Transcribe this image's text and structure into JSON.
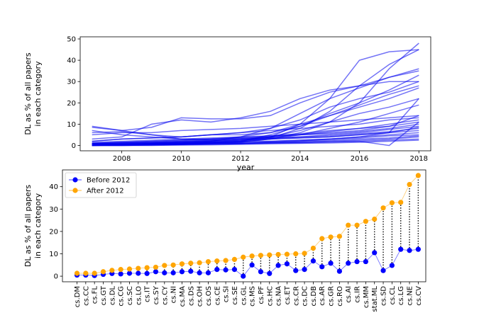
{
  "chart_data": [
    {
      "type": "line",
      "xlabel": "year",
      "ylabel_lines": [
        "DL as % of all papers",
        "in each category"
      ],
      "xlim": [
        2006.6,
        2018.4
      ],
      "ylim": [
        -2.5,
        51
      ],
      "xticks": [
        2008,
        2010,
        2012,
        2014,
        2016,
        2018
      ],
      "yticks": [
        0,
        10,
        20,
        30,
        40,
        50
      ],
      "line_color": "#0000ee",
      "x": [
        2007,
        2008,
        2009,
        2010,
        2011,
        2012,
        2013,
        2014,
        2015,
        2016,
        2017,
        2018
      ],
      "series": [
        {
          "values": [
            0.8,
            0.7,
            0.8,
            0.9,
            1.2,
            1.6,
            3,
            6,
            11,
            20,
            36,
            48
          ]
        },
        {
          "values": [
            0.9,
            1,
            1.2,
            1.3,
            1.5,
            1.8,
            3.5,
            8,
            16,
            28,
            38,
            45
          ]
        },
        {
          "values": [
            1,
            1.2,
            1.5,
            1.8,
            2,
            2.5,
            4,
            10,
            22,
            40,
            44,
            45
          ]
        },
        {
          "values": [
            0.5,
            0.8,
            1,
            1.5,
            2,
            4,
            8,
            15,
            22,
            27,
            32,
            36
          ]
        },
        {
          "values": [
            8.5,
            7,
            8.5,
            13,
            12.5,
            12.5,
            14,
            20,
            25,
            28,
            32,
            35
          ]
        },
        {
          "values": [
            0.3,
            0.5,
            0.8,
            1,
            1.5,
            2,
            5,
            9,
            15,
            20,
            26,
            33
          ]
        },
        {
          "values": [
            2,
            3,
            3.5,
            4,
            5,
            6,
            8,
            12,
            18,
            22,
            25,
            30
          ]
        },
        {
          "values": [
            1,
            1.5,
            2,
            2.5,
            3,
            4,
            6,
            10,
            14,
            19,
            24,
            28
          ]
        },
        {
          "values": [
            9,
            7,
            5,
            4,
            5,
            5,
            6,
            9,
            14,
            18,
            22,
            27
          ]
        },
        {
          "values": [
            0.5,
            0.8,
            1,
            1.2,
            1.5,
            2,
            4,
            7,
            11,
            15,
            18,
            22
          ]
        },
        {
          "values": [
            3,
            4,
            10,
            12,
            11,
            13,
            16,
            22,
            26,
            28,
            30,
            30
          ]
        },
        {
          "values": [
            0,
            0.3,
            0.5,
            0.7,
            1,
            1.5,
            3,
            5,
            8,
            11,
            15,
            19
          ]
        },
        {
          "values": [
            5,
            6,
            6,
            7,
            7.5,
            8,
            9,
            10,
            11,
            12,
            13,
            14
          ]
        },
        {
          "values": [
            2,
            3,
            3.5,
            4,
            5,
            6,
            7,
            8,
            9,
            10,
            12,
            13
          ]
        },
        {
          "values": [
            6,
            6.5,
            5,
            3,
            2.5,
            3,
            4,
            5,
            6.5,
            8,
            10,
            12
          ]
        },
        {
          "values": [
            1,
            1.5,
            2,
            2.5,
            3,
            3.5,
            4.5,
            5.5,
            7,
            8,
            9,
            11
          ]
        },
        {
          "values": [
            7,
            5,
            4,
            3,
            3,
            3.5,
            4,
            5,
            5.5,
            6.5,
            8,
            10
          ]
        },
        {
          "values": [
            0.5,
            1,
            1.5,
            2,
            2.5,
            3,
            3.5,
            4,
            5,
            6,
            7.5,
            9
          ]
        },
        {
          "values": [
            1,
            1.5,
            1.5,
            2,
            2.5,
            3,
            3.5,
            4,
            4.5,
            5.5,
            6.5,
            8
          ]
        },
        {
          "values": [
            0.5,
            0.5,
            1,
            1.5,
            2,
            2.5,
            3,
            3.5,
            4,
            5,
            6,
            7
          ]
        },
        {
          "values": [
            0.5,
            0.5,
            0.8,
            1,
            1.2,
            1.5,
            2,
            2.5,
            3,
            4,
            5,
            6
          ]
        },
        {
          "values": [
            0,
            0.2,
            0.5,
            1,
            1.5,
            2,
            2,
            2.5,
            3,
            3.5,
            4.5,
            5
          ]
        },
        {
          "values": [
            0,
            0.2,
            0.3,
            0.5,
            0.8,
            1,
            1.2,
            1.5,
            2,
            2.5,
            3,
            4
          ]
        },
        {
          "values": [
            0,
            0,
            0.2,
            0.3,
            0.5,
            0.8,
            1,
            1.2,
            1.5,
            2,
            2.5,
            3
          ]
        },
        {
          "values": [
            0.3,
            0.3,
            0.5,
            0.5,
            0.8,
            1,
            1.5,
            2,
            3,
            4,
            6,
            22
          ]
        },
        {
          "values": [
            1.5,
            2,
            2.5,
            3,
            3.5,
            4,
            4.5,
            5,
            6,
            7,
            9,
            14
          ]
        },
        {
          "values": [
            0,
            0,
            0,
            0.2,
            0.3,
            0.5,
            0.8,
            1,
            1.2,
            1.5,
            2,
            2.5
          ]
        },
        {
          "values": [
            0.5,
            0.5,
            0.5,
            0.8,
            1,
            1,
            1.5,
            2,
            2.5,
            3,
            3.5,
            4.5
          ]
        },
        {
          "values": [
            0,
            0.5,
            1,
            1.5,
            2,
            2.5,
            3,
            3.5,
            4,
            5,
            6,
            8.5
          ]
        },
        {
          "values": [
            0,
            0,
            0.2,
            0.5,
            1,
            1,
            1.5,
            1.5,
            2,
            2,
            0,
            11
          ]
        }
      ]
    },
    {
      "type": "scatter",
      "ylabel_lines": [
        "DL as % of all papers",
        "in each category"
      ],
      "ylim": [
        -2.5,
        47.5
      ],
      "yticks": [
        0,
        10,
        20,
        30,
        40
      ],
      "legend_position": "top-left",
      "categories": [
        "cs.DM",
        "cs.CC",
        "cs.FL",
        "cs.GT",
        "cs.DL",
        "cs.CG",
        "cs.SC",
        "cs.LO",
        "cs.IT",
        "cs.SY",
        "cs.CY",
        "cs.NI",
        "cs.MA",
        "cs.DS",
        "cs.OH",
        "cs.OS",
        "cs.CE",
        "cs.SI",
        "cs.SE",
        "cs.GL",
        "cs.MS",
        "cs.PF",
        "cs.HC",
        "cs.NA",
        "cs.ET",
        "cs.CR",
        "cs.DC",
        "cs.DB",
        "cs.AR",
        "cs.GR",
        "cs.RO",
        "cs.AI",
        "cs.IR",
        "cs.MM",
        "stat.ML",
        "cs.SD",
        "cs.CL",
        "cs.LG",
        "cs.NE",
        "cs.CV"
      ],
      "series": [
        {
          "name": "Before 2012",
          "color": "#0000ff",
          "values": [
            0.5,
            0.5,
            0.3,
            0.8,
            1.2,
            1,
            1.3,
            1.3,
            1.2,
            2,
            1.5,
            1.5,
            2,
            2.2,
            1.5,
            1.5,
            3,
            2.8,
            3,
            0,
            5,
            2,
            1.2,
            4.8,
            5.5,
            2.5,
            3,
            6.8,
            4.2,
            5.8,
            2.2,
            5.8,
            6.5,
            6.5,
            10.5,
            2.5,
            4.8,
            12,
            11.5,
            12
          ]
        },
        {
          "name": "After 2012",
          "color": "#ffa500",
          "values": [
            1.3,
            1.3,
            1.3,
            2,
            2.6,
            3,
            3.2,
            3.5,
            3.8,
            4,
            4.8,
            5,
            5.5,
            5.8,
            6,
            6.5,
            6.8,
            7,
            7.5,
            8.5,
            9,
            9.3,
            9.5,
            9.7,
            9.8,
            10,
            10.2,
            12.5,
            16.8,
            17.5,
            17.8,
            22.8,
            22.8,
            24.5,
            25.5,
            30.5,
            32.8,
            33,
            41,
            45
          ]
        }
      ]
    }
  ]
}
